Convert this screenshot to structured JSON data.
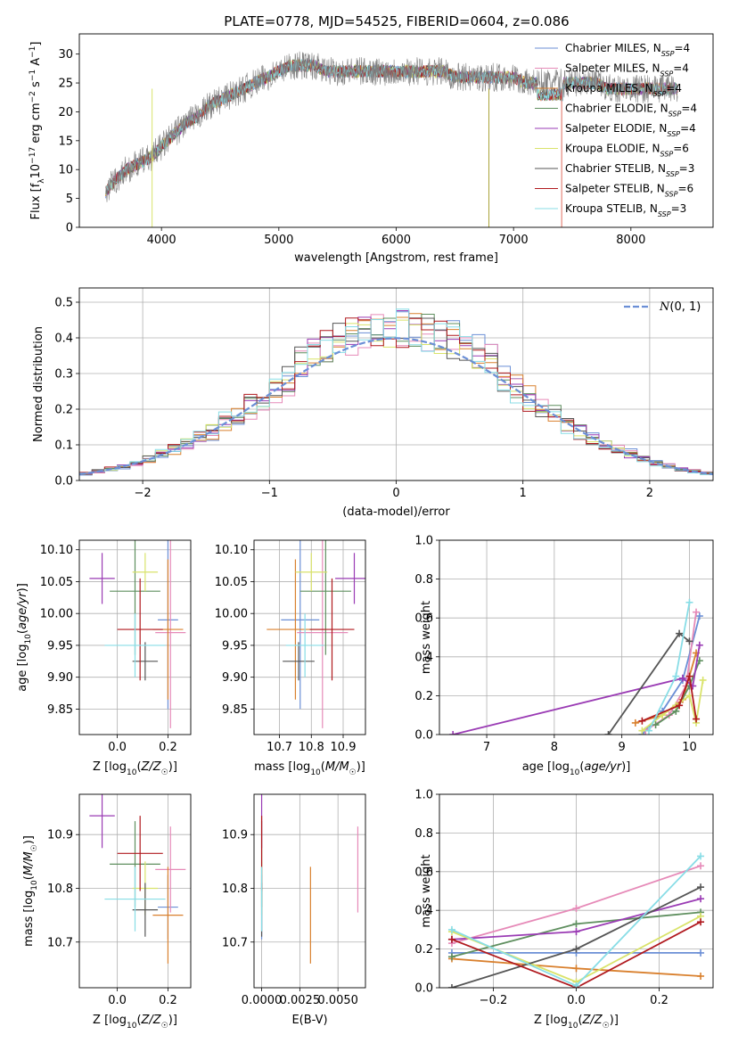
{
  "figure": {
    "title": "PLATE=0778, MJD=54525, FIBERID=0604, z=0.086"
  },
  "colors": {
    "Chabrier MILES": "#6b8fd6",
    "Salpeter MILES": "#e68ab8",
    "Kroupa MILES": "#d9802e",
    "Chabrier ELODIE": "#5f8f5f",
    "Salpeter ELODIE": "#9a3bb4",
    "Kroupa ELODIE": "#d9e36a",
    "Chabrier STELIB": "#555555",
    "Salpeter STELIB": "#b0191e",
    "Kroupa STELIB": "#88dde6"
  },
  "chart_data": [
    {
      "id": "spectrum",
      "type": "line",
      "title": "PLATE=0778, MJD=54525, FIBERID=0604, z=0.086",
      "xlabel": "wavelength [Angstrom, rest frame]",
      "ylabel": "Flux [f_λ 10^-17 erg cm^-2 s^-1 A^-1]",
      "xlim": [
        3300,
        8700
      ],
      "ylim": [
        0,
        33.5
      ],
      "xticks": [
        4000,
        5000,
        6000,
        7000,
        8000
      ],
      "yticks": [
        0,
        5,
        10,
        15,
        20,
        25,
        30
      ],
      "grid": false,
      "legend_position": "top-right",
      "data_color": "#808080",
      "data": {
        "x": [
          3520,
          3600,
          3700,
          3800,
          3900,
          4000,
          4100,
          4200,
          4300,
          4400,
          4500,
          4600,
          4700,
          4800,
          4900,
          5000,
          5100,
          5200,
          5300,
          5400,
          5500,
          5600,
          5700,
          5800,
          5900,
          6000,
          6100,
          6200,
          6300,
          6400,
          6500,
          6600,
          6700,
          6800,
          6900,
          7000,
          7100,
          7200,
          7300,
          7400,
          7500,
          7600,
          7700,
          7800,
          7900,
          8000,
          8100,
          8200,
          8300,
          8400
        ],
        "y": [
          6,
          8,
          10,
          11,
          12,
          14,
          16,
          18,
          19,
          21,
          22,
          23,
          24,
          25,
          26,
          27,
          28,
          28,
          28,
          27,
          27,
          27,
          27,
          27,
          27,
          27,
          27,
          27,
          27,
          27,
          26,
          26,
          26,
          26,
          26,
          26,
          25,
          25,
          25,
          25,
          25,
          25,
          25,
          24,
          24,
          24,
          24,
          24,
          24,
          24
        ]
      },
      "series": [
        {
          "name": "Chabrier MILES",
          "nssp": "4"
        },
        {
          "name": "Salpeter MILES",
          "nssp": "4"
        },
        {
          "name": "Kroupa MILES",
          "nssp": "4"
        },
        {
          "name": "Chabrier ELODIE",
          "nssp": "4"
        },
        {
          "name": "Salpeter ELODIE",
          "nssp": "4"
        },
        {
          "name": "Kroupa ELODIE",
          "nssp": "6"
        },
        {
          "name": "Chabrier STELIB",
          "nssp": "3"
        },
        {
          "name": "Salpeter STELIB",
          "nssp": "6"
        },
        {
          "name": "Kroupa STELIB",
          "nssp": "3"
        }
      ]
    },
    {
      "id": "residuals",
      "type": "line",
      "xlabel": "(data-model)/error",
      "ylabel": "Normed distribution",
      "xlim": [
        -2.5,
        2.5
      ],
      "ylim": [
        0,
        0.54
      ],
      "xticks": [
        -2,
        -1,
        0,
        1,
        2
      ],
      "yticks": [
        0.0,
        0.1,
        0.2,
        0.3,
        0.4,
        0.5
      ],
      "grid": true,
      "legend_position": "top-right",
      "reference": {
        "label": "N(0,1)",
        "mean": 0,
        "sigma": 1
      }
    },
    {
      "id": "age-vs-Z",
      "type": "scatter",
      "xlabel": "Z [log10(Z/Z☉)]",
      "ylabel": "age [log10(age/yr)]",
      "xlim": [
        -0.15,
        0.29
      ],
      "ylim": [
        9.81,
        10.115
      ],
      "xticks": [
        0.0,
        0.2
      ],
      "yticks": [
        9.85,
        9.9,
        9.95,
        10.0,
        10.05,
        10.1
      ],
      "grid": true
    },
    {
      "id": "age-vs-mass",
      "type": "scatter",
      "xlabel": "mass [log10(M/M☉)]",
      "xlim": [
        10.62,
        10.97
      ],
      "ylim": [
        9.81,
        10.115
      ],
      "xticks": [
        10.7,
        10.8,
        10.9
      ],
      "yticks": [
        9.85,
        9.9,
        9.95,
        10.0,
        10.05,
        10.1
      ],
      "grid": true
    },
    {
      "id": "weight-vs-age",
      "type": "line",
      "xlabel": "age [log10(age/yr)]",
      "ylabel": "mass weight",
      "xlim": [
        6.3,
        10.35
      ],
      "ylim": [
        0,
        1.0
      ],
      "xticks": [
        7,
        8,
        9,
        10
      ],
      "yticks": [
        0.0,
        0.2,
        0.4,
        0.6,
        0.8,
        1.0
      ],
      "grid": true
    },
    {
      "id": "mass-vs-Z",
      "type": "scatter",
      "xlabel": "Z [log10(Z/Z☉)]",
      "ylabel": "mass [log10(M/M☉)]",
      "xlim": [
        -0.15,
        0.29
      ],
      "ylim": [
        10.615,
        10.975
      ],
      "xticks": [
        0.0,
        0.2
      ],
      "yticks": [
        10.7,
        10.8,
        10.9
      ],
      "grid": true
    },
    {
      "id": "mass-vs-ebv",
      "type": "scatter",
      "xlabel": "E(B-V)",
      "xlim": [
        -0.0005,
        0.0068
      ],
      "ylim": [
        10.615,
        10.975
      ],
      "xticks": [
        0.0,
        0.0025,
        0.005
      ],
      "xticklabels": [
        "0.0000",
        "0.0025",
        "0.0050"
      ],
      "yticks": [
        10.7,
        10.8,
        10.9
      ],
      "grid": true
    },
    {
      "id": "weight-vs-Z",
      "type": "line",
      "xlabel": "Z [log10(Z/Z☉)]",
      "ylabel": "mass weight",
      "xlim": [
        -0.33,
        0.33
      ],
      "ylim": [
        0,
        1.0
      ],
      "xticks": [
        -0.2,
        0.0,
        0.2
      ],
      "yticks": [
        0.0,
        0.2,
        0.4,
        0.6,
        0.8,
        1.0
      ],
      "grid": true
    }
  ],
  "fits": [
    {
      "name": "Chabrier MILES",
      "Z": 0.2,
      "Zerr": 0.04,
      "age": 9.99,
      "ageerr": 0.14,
      "mass": 10.765,
      "masserr": 0.06,
      "ebv": 0.0,
      "ebverr": 0.0
    },
    {
      "name": "Salpeter MILES",
      "Z": 0.21,
      "Zerr": 0.06,
      "age": 9.97,
      "ageerr": 0.15,
      "mass": 10.835,
      "masserr": 0.08,
      "ebv": 0.0063,
      "ebverr": 0.0
    },
    {
      "name": "Kroupa MILES",
      "Z": 0.2,
      "Zerr": 0.06,
      "age": 9.975,
      "ageerr": 0.11,
      "mass": 10.75,
      "masserr": 0.09,
      "ebv": 0.0032,
      "ebverr": 0.0
    },
    {
      "name": "Chabrier ELODIE",
      "Z": 0.07,
      "Zerr": 0.1,
      "age": 10.035,
      "ageerr": 0.1,
      "mass": 10.845,
      "masserr": 0.08,
      "ebv": 0.0,
      "ebverr": 0.0
    },
    {
      "name": "Salpeter ELODIE",
      "Z": -0.06,
      "Zerr": 0.05,
      "age": 10.055,
      "ageerr": 0.04,
      "mass": 10.935,
      "masserr": 0.06,
      "ebv": 0.0,
      "ebverr": 0.0
    },
    {
      "name": "Kroupa ELODIE",
      "Z": 0.11,
      "Zerr": 0.05,
      "age": 10.065,
      "ageerr": 0.03,
      "mass": 10.8,
      "masserr": 0.05,
      "ebv": 0.0,
      "ebverr": 0.0
    },
    {
      "name": "Chabrier STELIB",
      "Z": 0.11,
      "Zerr": 0.05,
      "age": 9.925,
      "ageerr": 0.03,
      "mass": 10.76,
      "masserr": 0.05,
      "ebv": 0.0,
      "ebverr": 0.0
    },
    {
      "name": "Salpeter STELIB",
      "Z": 0.09,
      "Zerr": 0.09,
      "age": 9.975,
      "ageerr": 0.08,
      "mass": 10.865,
      "masserr": 0.07,
      "ebv": 0.0,
      "ebverr": 0.0
    },
    {
      "name": "Kroupa STELIB",
      "Z": 0.07,
      "Zerr": 0.12,
      "age": 9.95,
      "ageerr": 0.05,
      "mass": 10.78,
      "masserr": 0.06,
      "ebv": 0.0,
      "ebverr": 0.0
    }
  ],
  "weights_vs_age": [
    {
      "name": "Chabrier MILES",
      "age": [
        9.3,
        9.6,
        9.9,
        10.15
      ],
      "w": [
        0.0,
        0.12,
        0.28,
        0.61
      ]
    },
    {
      "name": "Salpeter MILES",
      "age": [
        9.35,
        9.7,
        9.95,
        10.1
      ],
      "w": [
        0.02,
        0.1,
        0.25,
        0.63
      ]
    },
    {
      "name": "Kroupa MILES",
      "age": [
        9.2,
        9.6,
        9.9,
        10.1
      ],
      "w": [
        0.06,
        0.1,
        0.18,
        0.42
      ]
    },
    {
      "name": "Chabrier ELODIE",
      "age": [
        9.5,
        9.8,
        10.0,
        10.15
      ],
      "w": [
        0.05,
        0.12,
        0.25,
        0.38
      ]
    },
    {
      "name": "Salpeter ELODIE",
      "age": [
        6.5,
        9.9,
        10.05,
        10.15
      ],
      "w": [
        0.0,
        0.29,
        0.25,
        0.46
      ]
    },
    {
      "name": "Kroupa ELODIE",
      "age": [
        9.3,
        9.6,
        9.8,
        10.0,
        10.1,
        10.2
      ],
      "w": [
        0.02,
        0.1,
        0.15,
        0.2,
        0.06,
        0.28
      ]
    },
    {
      "name": "Chabrier STELIB",
      "age": [
        8.8,
        9.85,
        10.0
      ],
      "w": [
        0.0,
        0.52,
        0.48
      ]
    },
    {
      "name": "Salpeter STELIB",
      "age": [
        9.3,
        9.85,
        10.0,
        10.1
      ],
      "w": [
        0.07,
        0.15,
        0.3,
        0.08
      ]
    },
    {
      "name": "Kroupa STELIB",
      "age": [
        9.4,
        9.8,
        10.0
      ],
      "w": [
        0.02,
        0.3,
        0.68
      ]
    }
  ],
  "weights_vs_Z": [
    {
      "name": "Chabrier MILES",
      "Z": [
        -0.3,
        0.0,
        0.3
      ],
      "w": [
        0.18,
        0.18,
        0.18
      ]
    },
    {
      "name": "Salpeter MILES",
      "Z": [
        -0.3,
        0.0,
        0.3
      ],
      "w": [
        0.23,
        0.41,
        0.63
      ]
    },
    {
      "name": "Kroupa MILES",
      "Z": [
        -0.3,
        0.0,
        0.3
      ],
      "w": [
        0.15,
        0.1,
        0.06
      ]
    },
    {
      "name": "Chabrier ELODIE",
      "Z": [
        -0.3,
        0.0,
        0.3
      ],
      "w": [
        0.16,
        0.33,
        0.39
      ]
    },
    {
      "name": "Salpeter ELODIE",
      "Z": [
        -0.3,
        0.0,
        0.3
      ],
      "w": [
        0.25,
        0.29,
        0.46
      ]
    },
    {
      "name": "Kroupa ELODIE",
      "Z": [
        -0.3,
        0.0,
        0.3
      ],
      "w": [
        0.29,
        0.03,
        0.37
      ]
    },
    {
      "name": "Chabrier STELIB",
      "Z": [
        -0.3,
        0.0,
        0.3
      ],
      "w": [
        0.0,
        0.2,
        0.52
      ]
    },
    {
      "name": "Salpeter STELIB",
      "Z": [
        -0.3,
        0.0,
        0.3
      ],
      "w": [
        0.25,
        0.0,
        0.34
      ]
    },
    {
      "name": "Kroupa STELIB",
      "Z": [
        -0.3,
        0.0,
        0.3
      ],
      "w": [
        0.3,
        0.01,
        0.68
      ]
    }
  ]
}
